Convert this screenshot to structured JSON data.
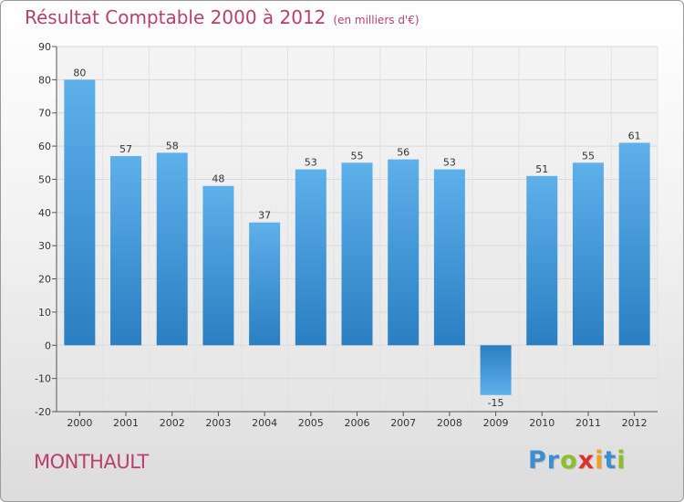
{
  "chart_data": {
    "type": "bar",
    "title": "Résultat Comptable 2000 à 2012",
    "subtitle": "(en milliers d'€)",
    "categories": [
      "2000",
      "2001",
      "2002",
      "2003",
      "2004",
      "2005",
      "2006",
      "2007",
      "2008",
      "2009",
      "2010",
      "2011",
      "2012"
    ],
    "values": [
      80,
      57,
      58,
      48,
      37,
      53,
      55,
      56,
      53,
      -15,
      51,
      55,
      61
    ],
    "ylim": [
      -20,
      90
    ],
    "yticks": [
      90,
      80,
      70,
      60,
      50,
      40,
      30,
      20,
      10,
      0,
      -10,
      -20
    ],
    "grid": true,
    "xlabel": "",
    "ylabel": ""
  },
  "commune": "MONTHAULT",
  "logo": {
    "letters": [
      {
        "ch": "P",
        "color": "#3b8fd0"
      },
      {
        "ch": "r",
        "color": "#3b8fd0"
      },
      {
        "ch": "o",
        "color": "#8bbf2c"
      },
      {
        "ch": "x",
        "color": "#e0302c"
      },
      {
        "ch": "i",
        "color": "#f0a020"
      },
      {
        "ch": "t",
        "color": "#3b8fd0"
      },
      {
        "ch": "i",
        "color": "#8bbf2c"
      }
    ]
  },
  "colors": {
    "bar_top": "#5eb0ea",
    "bar_bottom": "#2a7fc2",
    "text_accent": "#b8406a"
  }
}
